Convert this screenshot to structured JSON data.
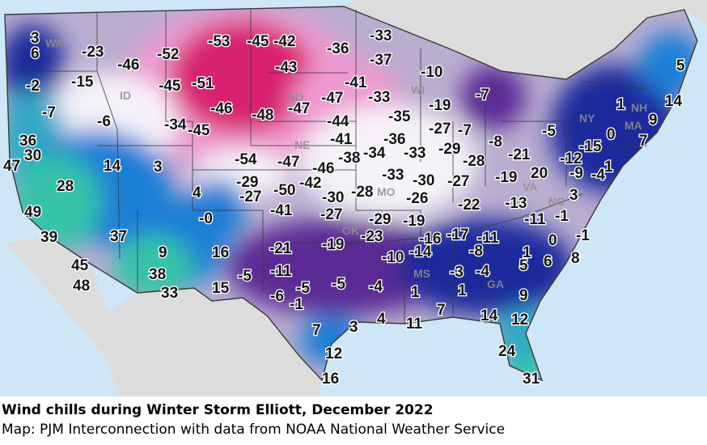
{
  "caption": {
    "title": "Wind chills during Winter Storm Elliott, December 2022",
    "source": "Map: PJM Interconnection with data from NOAA National Weather Service"
  },
  "colors": {
    "ocean": "#cfe6f7",
    "land_outside": "#dcdcdc",
    "state_lines": "#3a3a3a",
    "coldest": "#d8206f",
    "very_cold": "#ee9ad0",
    "cold": "#f5f2f8",
    "cool": "#b9add0",
    "mid": "#5c2a94",
    "low": "#1f2a9c",
    "warmish": "#1f7fd6",
    "warm": "#30a9c5",
    "warmest": "#34c3a8"
  },
  "state_labels": [
    "WA",
    "ID",
    "SD",
    "NE",
    "WI",
    "MO",
    "OK",
    "MS",
    "NY",
    "NH",
    "MA",
    "VA",
    "NC",
    "GA"
  ],
  "wind_chill_values": [
    "3",
    "6",
    "-2",
    "-7",
    "-23",
    "-15",
    "-46",
    "-52",
    "-53",
    "-45",
    "-42",
    "-36",
    "-33",
    "-37",
    "-43",
    "-45",
    "-51",
    "-6",
    "-34",
    "-46",
    "-45",
    "-48",
    "-47",
    "-41",
    "-47",
    "-33",
    "-10",
    "-19",
    "-7",
    "-35",
    "-44",
    "-36",
    "-41",
    "-34",
    "-33",
    "-27",
    "-29",
    "-28",
    "-7",
    "-8",
    "-5",
    "-21",
    "-12",
    "-15",
    "0",
    "1",
    "5",
    "14",
    "9",
    "7",
    "36",
    "30",
    "47",
    "14",
    "3",
    "-54",
    "-47",
    "-46",
    "-38",
    "-33",
    "-30",
    "-27",
    "-19",
    "20",
    "-9",
    "-4",
    "1",
    "28",
    "4",
    "-29",
    "-27",
    "-50",
    "-42",
    "-30",
    "-28",
    "-26",
    "-22",
    "-13",
    "3",
    "49",
    "-0",
    "-41",
    "-27",
    "-29",
    "-19",
    "-17",
    "-16",
    "-11",
    "-11",
    "-1",
    "39",
    "37",
    "16",
    "-21",
    "-19",
    "-23",
    "-10",
    "-14",
    "-8",
    "1",
    "0",
    "-1",
    "9",
    "45",
    "-11",
    "-5",
    "-3",
    "-4",
    "5",
    "6",
    "8",
    "38",
    "33",
    "15",
    "-6",
    "-5",
    "-1",
    "-5",
    "-4",
    "1",
    "1",
    "9",
    "48",
    "7",
    "3",
    "4",
    "11",
    "7",
    "12",
    "14",
    "12",
    "24",
    "16",
    "31"
  ]
}
